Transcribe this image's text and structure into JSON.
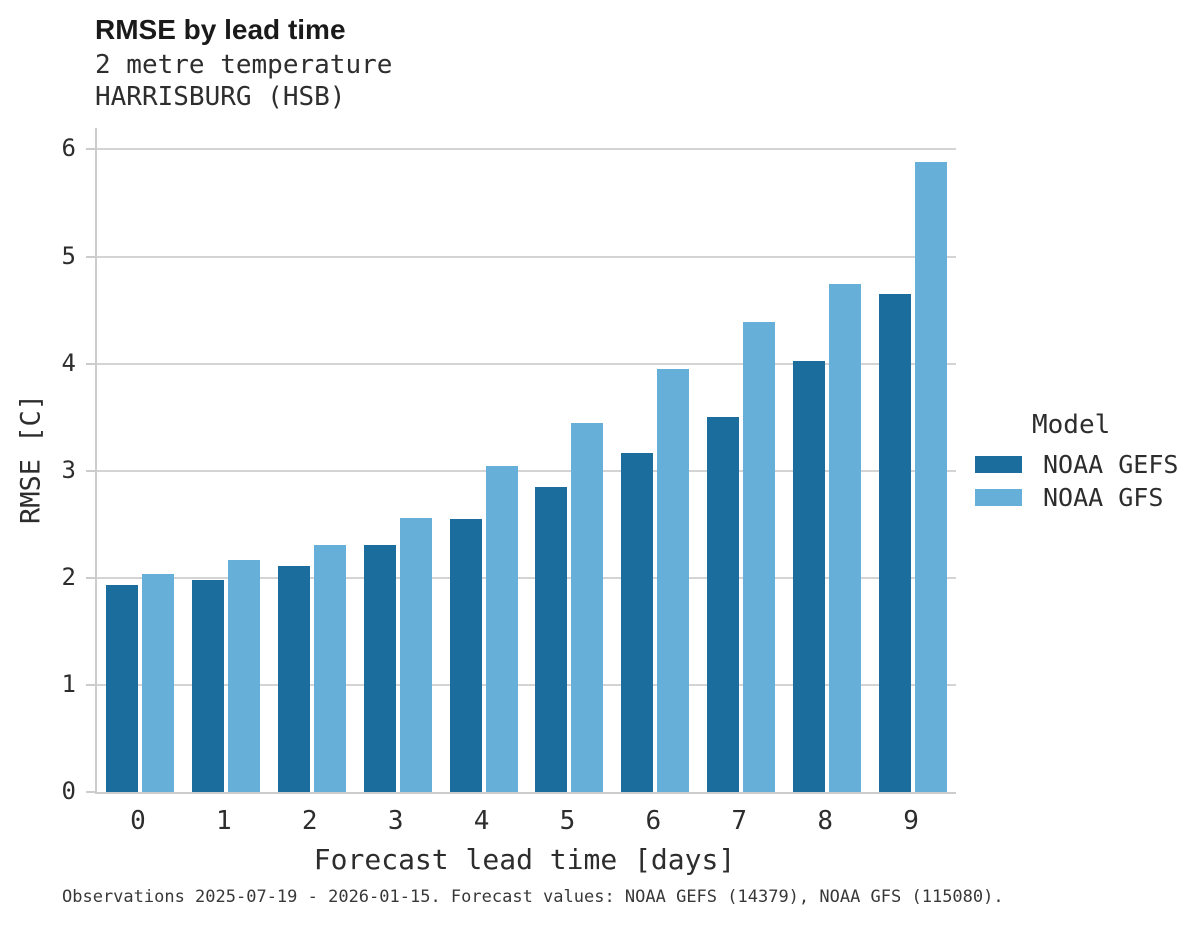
{
  "header": {
    "title": "RMSE by lead time",
    "subtitle1": "2 metre temperature",
    "subtitle2": "HARRISBURG (HSB)"
  },
  "colors": {
    "gefs": "#1b6d9d",
    "gfs": "#66afd8",
    "grid": "#d4d4d4",
    "spine": "#cccccc"
  },
  "legend": {
    "title": "Model",
    "entries": [
      {
        "label": "NOAA GEFS",
        "color": "#1b6d9d"
      },
      {
        "label": "NOAA GFS",
        "color": "#66afd8"
      }
    ]
  },
  "chart_data": {
    "type": "bar",
    "title": "RMSE by lead time",
    "subtitle": [
      "2 metre temperature",
      "HARRISBURG (HSB)"
    ],
    "categories": [
      "0",
      "1",
      "2",
      "3",
      "4",
      "5",
      "6",
      "7",
      "8",
      "9"
    ],
    "series": [
      {
        "name": "NOAA GEFS",
        "color": "#1b6d9d",
        "values": [
          1.93,
          1.98,
          2.11,
          2.31,
          2.55,
          2.85,
          3.17,
          3.5,
          4.02,
          4.65
        ]
      },
      {
        "name": "NOAA GFS",
        "color": "#66afd8",
        "values": [
          2.04,
          2.17,
          2.31,
          2.56,
          3.04,
          3.45,
          3.95,
          4.39,
          4.74,
          5.88
        ]
      }
    ],
    "xlabel": "Forecast lead time [days]",
    "ylabel": "RMSE [C]",
    "ylim": [
      0,
      6.2
    ],
    "yticks": [
      0,
      1,
      2,
      3,
      4,
      5,
      6
    ],
    "grid": true,
    "legend_title": "Model",
    "legend_position": "right"
  },
  "caption": "Observations 2025-07-19 - 2026-01-15. Forecast values: NOAA GEFS (14379), NOAA GFS (115080)."
}
